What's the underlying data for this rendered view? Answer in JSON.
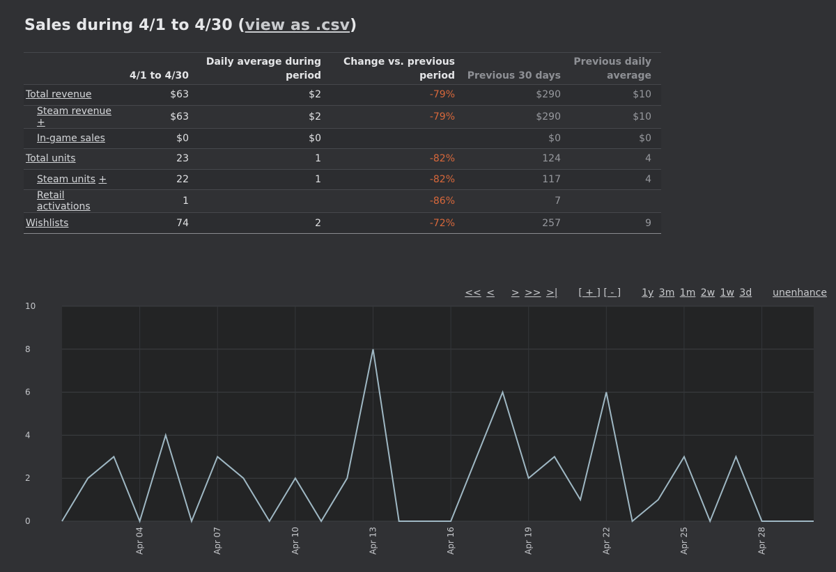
{
  "header": {
    "title_prefix": "Sales during 4/1 to 4/30 (",
    "csv_link": "view as .csv",
    "title_suffix": ")"
  },
  "table": {
    "columns": [
      "",
      "4/1 to 4/30",
      "Daily average during period",
      "Change vs. previous period",
      "Previous 30 days",
      "Previous daily average"
    ],
    "rows": [
      {
        "label": "Total revenue",
        "plus": "",
        "sub": false,
        "period": "$63",
        "daily": "$2",
        "change": "-79%",
        "prev30": "$290",
        "prevdaily": "$10"
      },
      {
        "label": "Steam revenue",
        "plus": "+",
        "sub": true,
        "period": "$63",
        "daily": "$2",
        "change": "-79%",
        "prev30": "$290",
        "prevdaily": "$10"
      },
      {
        "label": "In-game sales",
        "plus": "",
        "sub": true,
        "period": "$0",
        "daily": "$0",
        "change": "",
        "prev30": "$0",
        "prevdaily": "$0"
      },
      {
        "label": "Total units",
        "plus": "",
        "sub": false,
        "period": "23",
        "daily": "1",
        "change": "-82%",
        "prev30": "124",
        "prevdaily": "4"
      },
      {
        "label": "Steam units",
        "plus": "+",
        "sub": true,
        "period": "22",
        "daily": "1",
        "change": "-82%",
        "prev30": "117",
        "prevdaily": "4"
      },
      {
        "label": "Retail activations",
        "plus": "",
        "sub": true,
        "period": "1",
        "daily": "",
        "change": "-86%",
        "prev30": "7",
        "prevdaily": ""
      },
      {
        "label": "Wishlists",
        "plus": "",
        "sub": false,
        "period": "74",
        "daily": "2",
        "change": "-72%",
        "prev30": "257",
        "prevdaily": "9"
      }
    ]
  },
  "controls": {
    "nav": [
      "<<",
      "<",
      ">",
      ">>",
      ">|"
    ],
    "zoom": [
      "[ + ]",
      "[ - ]"
    ],
    "ranges": [
      "1y",
      "3m",
      "1m",
      "2w",
      "1w",
      "3d"
    ],
    "unenhance": "unenhance"
  },
  "colors": {
    "background": "#303134",
    "plot_background": "#232425",
    "line": "#9fb8c4",
    "negative": "#d8683b"
  },
  "chart_data": {
    "type": "line",
    "x": [
      "Apr 01",
      "Apr 02",
      "Apr 03",
      "Apr 04",
      "Apr 05",
      "Apr 06",
      "Apr 07",
      "Apr 08",
      "Apr 09",
      "Apr 10",
      "Apr 11",
      "Apr 12",
      "Apr 13",
      "Apr 14",
      "Apr 15",
      "Apr 16",
      "Apr 17",
      "Apr 18",
      "Apr 19",
      "Apr 20",
      "Apr 21",
      "Apr 22",
      "Apr 23",
      "Apr 24",
      "Apr 25",
      "Apr 26",
      "Apr 27",
      "Apr 28",
      "Apr 29",
      "Apr 30"
    ],
    "series": [
      {
        "values": [
          0,
          2,
          3,
          0,
          4,
          0,
          3,
          2,
          0,
          2,
          0,
          2,
          8,
          0,
          0,
          0,
          3,
          6,
          2,
          3,
          1,
          6,
          0,
          1,
          3,
          0,
          3,
          0,
          0,
          0
        ]
      }
    ],
    "xticks": [
      "Apr 04",
      "Apr 07",
      "Apr 10",
      "Apr 13",
      "Apr 16",
      "Apr 19",
      "Apr 22",
      "Apr 25",
      "Apr 28"
    ],
    "yticks": [
      0,
      2,
      4,
      6,
      8,
      10
    ],
    "ylim": [
      0,
      10
    ],
    "grid": true
  }
}
